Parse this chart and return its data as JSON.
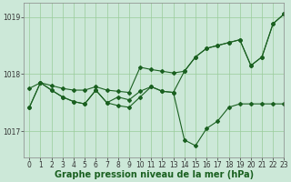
{
  "title": "Graphe pression niveau de la mer (hPa)",
  "background_color": "#cce8d8",
  "line_color": "#1a6020",
  "grid_color": "#99cc99",
  "xlim": [
    -0.5,
    23
  ],
  "ylim": [
    1016.55,
    1019.25
  ],
  "yticks": [
    1017,
    1018,
    1019
  ],
  "xticks": [
    0,
    1,
    2,
    3,
    4,
    5,
    6,
    7,
    8,
    9,
    10,
    11,
    12,
    13,
    14,
    15,
    16,
    17,
    18,
    19,
    20,
    21,
    22,
    23
  ],
  "series": [
    [
      1017.75,
      1017.85,
      1017.8,
      1017.75,
      1017.72,
      1017.72,
      1017.78,
      1017.72,
      1017.7,
      1017.68,
      1018.12,
      1018.08,
      1018.05,
      1018.02,
      1018.05,
      1018.3,
      1018.45,
      1018.5,
      1018.55,
      1018.6,
      1018.15,
      1018.3,
      1018.88,
      1019.05
    ],
    [
      1017.42,
      1017.85,
      1017.72,
      1017.6,
      1017.52,
      1017.48,
      1017.72,
      1017.5,
      1017.45,
      1017.42,
      1017.6,
      1017.78,
      1017.7,
      1017.68,
      1016.85,
      1016.75,
      1017.05,
      1017.18,
      1017.42,
      1017.48,
      1017.48,
      1017.48,
      1017.48,
      1017.48
    ],
    [
      1017.42,
      1017.85,
      1017.72,
      1017.6,
      1017.52,
      1017.48,
      1017.72,
      1017.5,
      1017.6,
      1017.55,
      1017.7,
      1017.78,
      1017.7,
      1017.68,
      1018.05,
      1018.3,
      1018.45,
      1018.5,
      1018.55,
      1018.6,
      1018.15,
      1018.3,
      1018.88,
      1019.05
    ]
  ],
  "marker": "D",
  "markersize": 2.0,
  "linewidth": 0.8,
  "tick_fontsize": 5.5,
  "xlabel_fontsize": 7.0
}
